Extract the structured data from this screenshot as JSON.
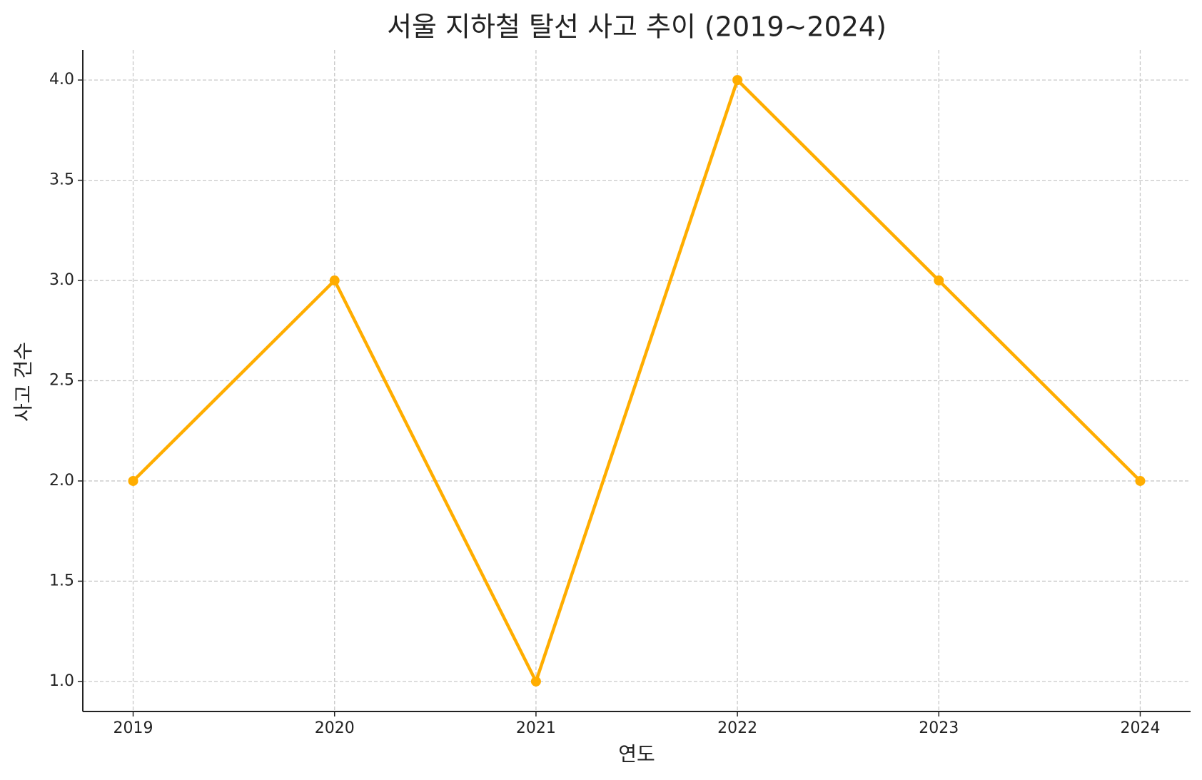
{
  "chart_data": {
    "type": "line",
    "title": "서울 지하철 탈선 사고 추이 (2019~2024)",
    "x_label": "연도",
    "y_label": "사고 건수",
    "x": [
      2019,
      2020,
      2021,
      2022,
      2023,
      2024
    ],
    "values": [
      2,
      3,
      1,
      4,
      3,
      2
    ],
    "color": "#ffad00",
    "xlim": [
      2018.75,
      2024.25
    ],
    "xticks": [
      2019,
      2020,
      2021,
      2022,
      2023,
      2024
    ],
    "ylim": [
      0.85,
      4.15
    ],
    "yticks": [
      {
        "value": 1.0,
        "label": "1.0"
      },
      {
        "value": 1.5,
        "label": "1.5"
      },
      {
        "value": 2.0,
        "label": "2.0"
      },
      {
        "value": 2.5,
        "label": "2.5"
      },
      {
        "value": 3.0,
        "label": "3.0"
      },
      {
        "value": 3.5,
        "label": "3.5"
      },
      {
        "value": 4.0,
        "label": "4.0"
      }
    ],
    "grid": true
  }
}
